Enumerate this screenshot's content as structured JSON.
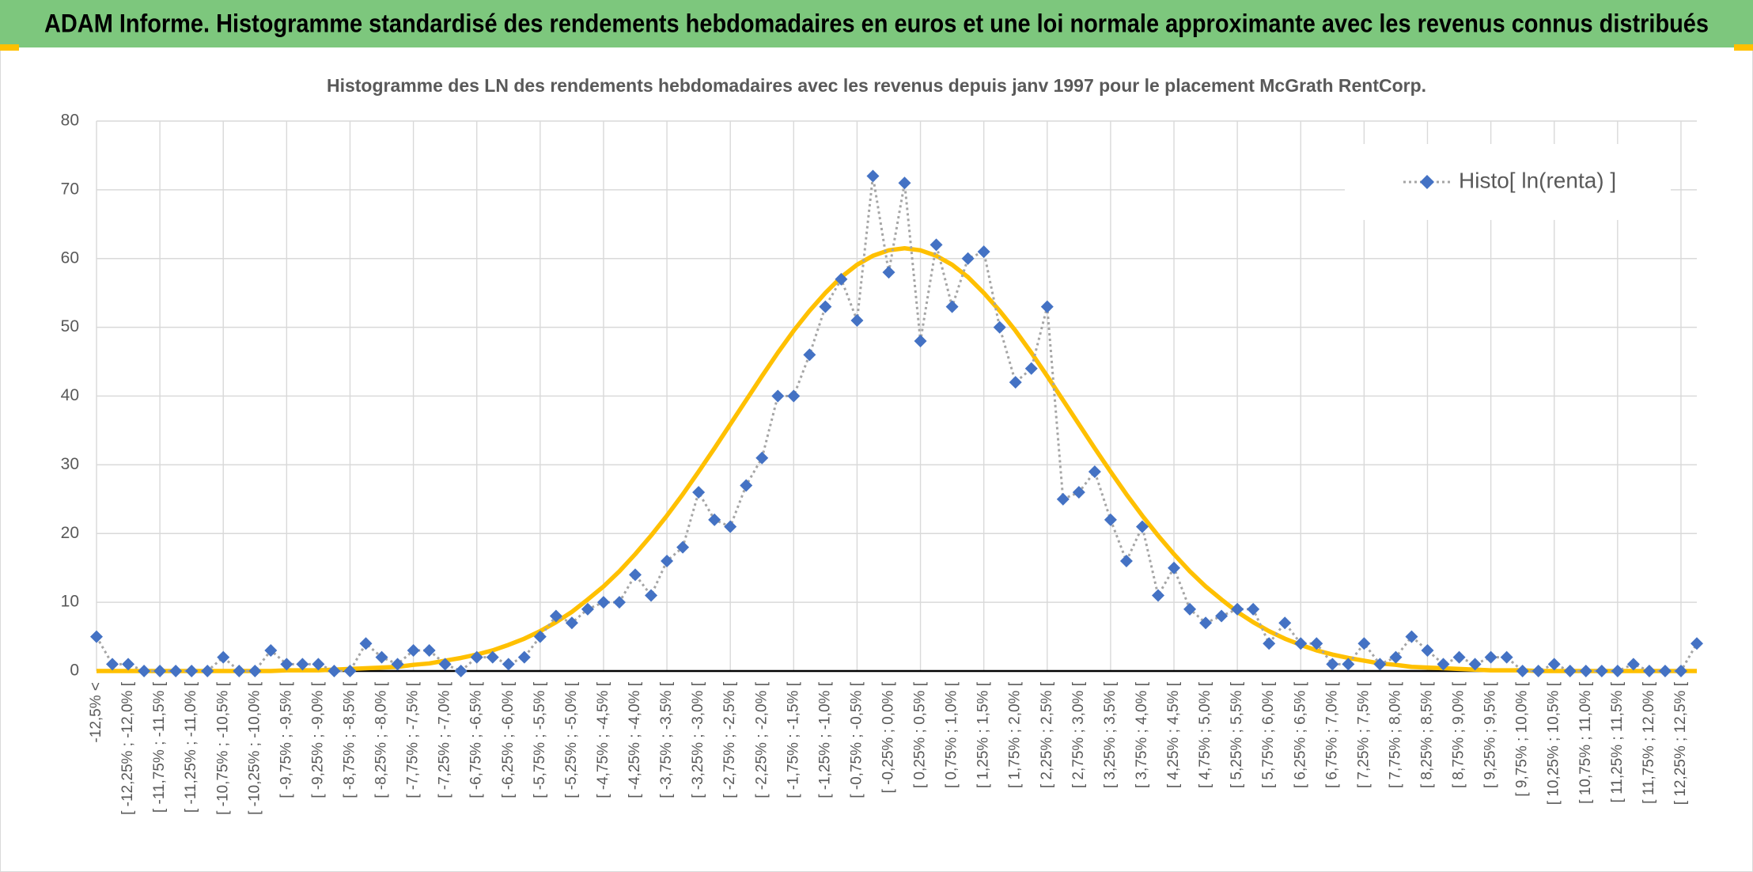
{
  "header": {
    "title": "ADAM Informe. Histogramme standardisé des rendements hebdomadaires en euros et une loi normale approximante avec les revenus connus distribués"
  },
  "chart_data": {
    "type": "line",
    "title": "Histogramme des LN des rendements hebdomadaires avec les revenus depuis janv 1997 pour le placement McGrath RentCorp.",
    "categories": [
      "-12,5% <",
      null,
      "[ -12,25% ; -12,0% [",
      null,
      "[ -11,75% ; -11,5% [",
      null,
      "[ -11,25% ; -11,0% [",
      null,
      "[ -10,75% ; -10,5% [",
      null,
      "[ -10,25% ; -10,0% [",
      null,
      "[ -9,75% ; -9,5% [",
      null,
      "[ -9,25% ; -9,0% [",
      null,
      "[ -8,75% ; -8,5% [",
      null,
      "[ -8,25% ; -8,0% [",
      null,
      "[ -7,75% ; -7,5% [",
      null,
      "[ -7,25% ; -7,0% [",
      null,
      "[ -6,75% ; -6,5% [",
      null,
      "[ -6,25% ; -6,0% [",
      null,
      "[ -5,75% ; -5,5% [",
      null,
      "[ -5,25% ; -5,0% [",
      null,
      "[ -4,75% ; -4,5% [",
      null,
      "[ -4,25% ; -4,0% [",
      null,
      "[ -3,75% ; -3,5% [",
      null,
      "[ -3,25% ; -3,0% [",
      null,
      "[ -2,75% ; -2,5% [",
      null,
      "[ -2,25% ; -2,0% [",
      null,
      "[ -1,75% ; -1,5% [",
      null,
      "[ -1,25% ; -1,0% [",
      null,
      "[ -0,75% ; -0,5% [",
      null,
      "[ -0,25% ; 0,0% [",
      null,
      "[ 0,25% ; 0,5% [",
      null,
      "[ 0,75% ; 1,0% [",
      null,
      "[ 1,25% ; 1,5% [",
      null,
      "[ 1,75% ; 2,0% [",
      null,
      "[ 2,25% ; 2,5% [",
      null,
      "[ 2,75% ; 3,0% [",
      null,
      "[ 3,25% ; 3,5% [",
      null,
      "[ 3,75% ; 4,0% [",
      null,
      "[ 4,25% ; 4,5% [",
      null,
      "[ 4,75% ; 5,0% [",
      null,
      "[ 5,25% ; 5,5% [",
      null,
      "[ 5,75% ; 6,0% [",
      null,
      "[ 6,25% ; 6,5% [",
      null,
      "[ 6,75% ; 7,0% [",
      null,
      "[ 7,25% ; 7,5% [",
      null,
      "[ 7,75% ; 8,0% [",
      null,
      "[ 8,25% ; 8,5% [",
      null,
      "[ 8,75% ; 9,0% [",
      null,
      "[ 9,25% ; 9,5% [",
      null,
      "[ 9,75% ; 10,0% [",
      null,
      "[ 10,25% ; 10,5% [",
      null,
      "[ 10,75% ; 11,0% [",
      null,
      "[ 11,25% ; 11,5% [",
      null,
      "[ 11,75% ; 12,0% [",
      null,
      "[ 12,25% ; 12,5% [",
      null
    ],
    "series": [
      {
        "name": "Histo[ ln(renta) ]",
        "color": "#4472c4",
        "line_color": "#a5a5a5",
        "marker": "diamond",
        "values": [
          5,
          1,
          1,
          0,
          0,
          0,
          0,
          0,
          2,
          0,
          0,
          3,
          1,
          1,
          1,
          0,
          0,
          4,
          2,
          1,
          3,
          3,
          1,
          0,
          2,
          2,
          1,
          2,
          5,
          8,
          7,
          9,
          10,
          10,
          14,
          11,
          16,
          18,
          26,
          22,
          21,
          27,
          31,
          40,
          40,
          46,
          53,
          57,
          51,
          72,
          58,
          71,
          48,
          62,
          53,
          60,
          61,
          50,
          42,
          44,
          53,
          25,
          26,
          29,
          22,
          16,
          21,
          11,
          15,
          9,
          7,
          8,
          9,
          9,
          4,
          7,
          4,
          4,
          1,
          1,
          4,
          1,
          2,
          5,
          3,
          1,
          2,
          1,
          2,
          2,
          0,
          0,
          1,
          0,
          0,
          0,
          0,
          1,
          0,
          0,
          0,
          4
        ]
      },
      {
        "color": "#ffc000",
        "values": [
          0,
          0,
          0,
          0,
          0,
          0,
          0,
          0,
          0,
          0,
          0,
          0,
          0.1,
          0.1,
          0.1,
          0.2,
          0.3,
          0.4,
          0.5,
          0.6,
          0.9,
          1.1,
          1.5,
          1.9,
          2.4,
          3.0,
          3.8,
          4.7,
          5.8,
          7.1,
          8.6,
          10.4,
          12.3,
          14.5,
          17.0,
          19.7,
          22.6,
          25.7,
          29.0,
          32.4,
          35.9,
          39.4,
          42.9,
          46.3,
          49.5,
          52.4,
          55.0,
          57.3,
          59.1,
          60.4,
          61.2,
          61.5,
          61.2,
          60.4,
          59.1,
          57.3,
          55.0,
          52.4,
          49.5,
          46.3,
          42.9,
          39.4,
          35.9,
          32.4,
          29.0,
          25.7,
          22.6,
          19.7,
          17.0,
          14.5,
          12.3,
          10.4,
          8.6,
          7.1,
          5.8,
          4.7,
          3.8,
          3.0,
          2.4,
          1.9,
          1.5,
          1.1,
          0.9,
          0.6,
          0.5,
          0.4,
          0.3,
          0.2,
          0.1,
          0.1,
          0.1,
          0,
          0,
          0,
          0,
          0,
          0,
          0,
          0,
          0,
          0,
          0
        ]
      }
    ],
    "ylim": [
      0,
      80
    ],
    "yticks": [
      0,
      10,
      20,
      30,
      40,
      50,
      60,
      70,
      80
    ],
    "grid": true,
    "legend": "upper right"
  }
}
